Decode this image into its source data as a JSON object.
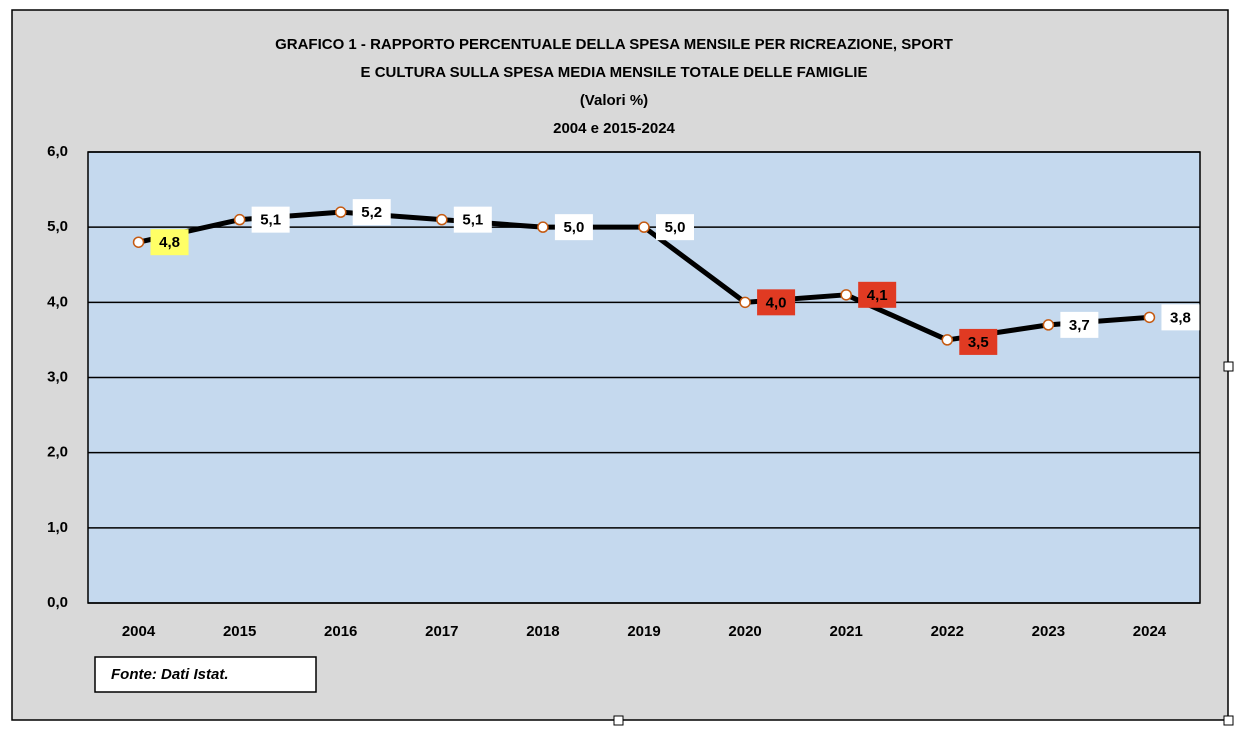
{
  "chart_data": {
    "type": "line",
    "title": [
      "GRAFICO 1 - RAPPORTO PERCENTUALE DELLA SPESA MENSILE PER RICREAZIONE, SPORT",
      "E CULTURA SULLA SPESA MEDIA MENSILE TOTALE DELLE FAMIGLIE",
      "(Valori %)",
      "2004 e 2015-2024"
    ],
    "categories": [
      "2004",
      "2015",
      "2016",
      "2017",
      "2018",
      "2019",
      "2020",
      "2021",
      "2022",
      "2023",
      "2024"
    ],
    "values": [
      4.8,
      5.1,
      5.2,
      5.1,
      5.0,
      5.0,
      4.0,
      4.1,
      3.5,
      3.7,
      3.8
    ],
    "value_labels": [
      "4,8",
      "5,1",
      "5,2",
      "5,1",
      "5,0",
      "5,0",
      "4,0",
      "4,1",
      "3,5",
      "3,7",
      "3,8"
    ],
    "label_colors": [
      "#ffff66",
      "#ffffff",
      "#ffffff",
      "#ffffff",
      "#ffffff",
      "#ffffff",
      "#e03a22",
      "#e03a22",
      "#e03a22",
      "#ffffff",
      "#ffffff"
    ],
    "color": "#000000",
    "marker_color": "#c55a11",
    "ylim": [
      0,
      6
    ],
    "yticks": [
      {
        "value": 0,
        "label": "0,0"
      },
      {
        "value": 1,
        "label": "1,0"
      },
      {
        "value": 2,
        "label": "2,0"
      },
      {
        "value": 3,
        "label": "3,0"
      },
      {
        "value": 4,
        "label": "4,0"
      },
      {
        "value": 5,
        "label": "5,0"
      },
      {
        "value": 6,
        "label": "6,0"
      }
    ],
    "grid": true,
    "source": "Fonte: Dati Istat."
  }
}
